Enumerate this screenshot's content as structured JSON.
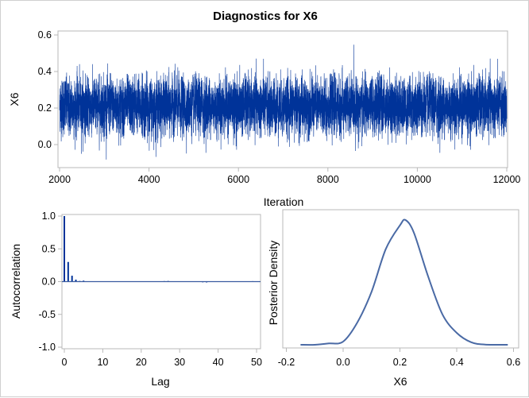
{
  "chart_data": [
    {
      "type": "line",
      "title": "Diagnostics for X6",
      "xlabel": "Iteration",
      "ylabel": "X6",
      "xlim": [
        2000,
        12000
      ],
      "ylim": [
        -0.125,
        0.62
      ],
      "xticks": [
        "2000",
        "4000",
        "6000",
        "8000",
        "10000",
        "12000"
      ],
      "yticks": [
        "0.0",
        "0.2",
        "0.4",
        "0.6"
      ],
      "color": "#003399"
    },
    {
      "type": "bar",
      "xlabel": "Lag",
      "ylabel": "Autocorrelation",
      "xlim": [
        0,
        50
      ],
      "ylim": [
        -1.0,
        1.0
      ],
      "xticks": [
        "0",
        "10",
        "20",
        "30",
        "40",
        "50"
      ],
      "yticks": [
        "-1.0",
        "-0.5",
        "0.0",
        "0.5",
        "1.0"
      ],
      "lags": [
        0,
        1,
        2,
        3,
        4,
        5,
        6,
        7,
        8,
        9,
        10,
        11,
        12,
        13,
        14,
        15,
        16,
        17,
        18,
        19,
        20,
        21,
        22,
        23,
        24,
        25,
        26,
        27,
        28,
        29,
        30,
        31,
        32,
        33,
        34,
        35,
        36,
        37,
        38,
        39,
        40,
        41,
        42,
        43,
        44,
        45,
        46,
        47,
        48,
        49,
        50
      ],
      "values": [
        1.0,
        0.3,
        0.09,
        0.03,
        0.01,
        0.015,
        0.005,
        0.004,
        0.003,
        0.002,
        0.002,
        0.001,
        0.0,
        0.0,
        0.0,
        0.003,
        0.003,
        0.004,
        0.003,
        0.004,
        0.0,
        0.0,
        0.0,
        0.002,
        0.004,
        0.006,
        0.008,
        0.01,
        0.0,
        0.003,
        0.004,
        0.0,
        0.006,
        0.005,
        0.0,
        0.0,
        -0.01,
        -0.012,
        -0.006,
        -0.005,
        -0.004,
        0.0,
        0.005,
        0.0,
        0.003,
        0.0,
        0.0,
        0.0,
        0.0,
        0.007,
        0.0
      ],
      "color": "#003399",
      "reference_line": 0
    },
    {
      "type": "line",
      "xlabel": "X6",
      "ylabel": "Posterior Density",
      "xlim": [
        -0.2,
        0.6
      ],
      "xticks": [
        "-0.2",
        "0.0",
        "0.2",
        "0.4",
        "0.6"
      ],
      "x": [
        -0.15,
        -0.1,
        -0.05,
        0.0,
        0.05,
        0.1,
        0.15,
        0.2,
        0.22,
        0.25,
        0.3,
        0.35,
        0.4,
        0.45,
        0.5,
        0.58
      ],
      "y": [
        0.0,
        0.0,
        0.05,
        0.12,
        0.84,
        2.0,
        3.6,
        4.5,
        4.7,
        4.2,
        2.55,
        1.14,
        0.45,
        0.1,
        0.01,
        0.0
      ],
      "color": "#4a6aa5"
    }
  ]
}
